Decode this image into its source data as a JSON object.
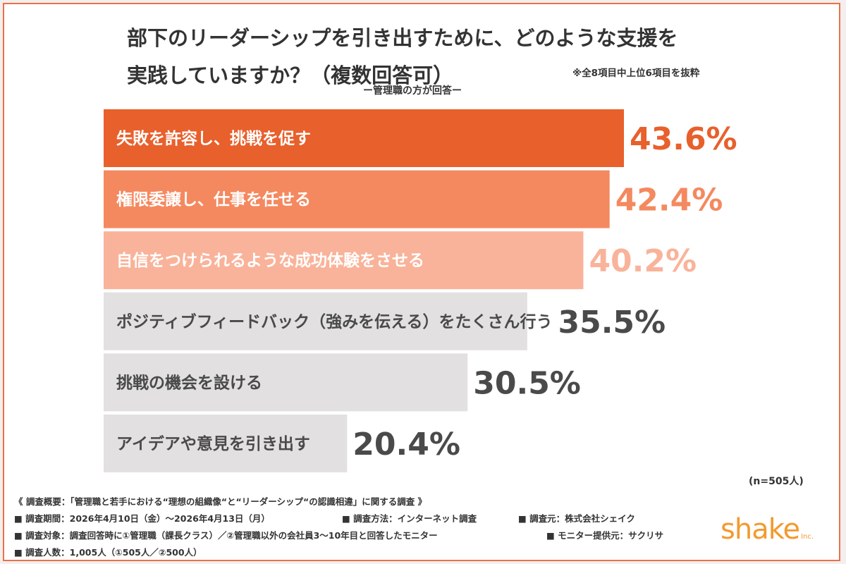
{
  "title_lines": [
    "部下のリーダーシップを引き出すために、どのような支援を",
    "実践していますか？（複数回答可）"
  ],
  "note": "※全8項目中上位6項目を抜粋",
  "subtitle": "ー管理職の方が回答ー",
  "chart_data": {
    "type": "bar",
    "orientation": "horizontal",
    "title": "部下のリーダーシップを引き出すために、どのような支援を実践していますか？（複数回答可）",
    "categories": [
      "失敗を許容し、挑戦を促す",
      "権限委譲し、仕事を任せる",
      "自信をつけられるような成功体験をさせる",
      "ポジティブフィードバック（強みを伝える）をたくさん行う",
      "挑戦の機会を設ける",
      "アイデアや意見を引き出す"
    ],
    "values": [
      43.6,
      42.4,
      40.2,
      35.5,
      30.5,
      20.4
    ],
    "value_labels": [
      "43.6%",
      "42.4%",
      "40.2%",
      "35.5%",
      "30.5%",
      "20.4%"
    ],
    "unit": "%",
    "bar_colors": [
      "#e8602c",
      "#f4895f",
      "#f9b39a",
      "#e2e0e0",
      "#e2e0e0",
      "#e2e0e0"
    ],
    "label_colors": [
      "#ffffff",
      "#ffffff",
      "#ffffff",
      "#4a4a4a",
      "#4a4a4a",
      "#4a4a4a"
    ],
    "value_colors": [
      "#e8602c",
      "#f4895f",
      "#f9b39a",
      "#4a4a4a",
      "#4a4a4a",
      "#4a4a4a"
    ],
    "grid": false,
    "xlim": [
      0,
      50
    ]
  },
  "n_count": "(n=505人)",
  "overview": {
    "heading": "《 調査概要：「管理職と若手における“理想の組織像“と“リーダーシップ“の認識相違」に関する調査 》",
    "period": "■ 調査期間：2026年4月10日（金）〜2026年4月13日（月）",
    "method": "■ 調査方法：インターネット調査",
    "source": "■ 調査元：株式会社シェイク",
    "target": "■ 調査対象：調査回答時に①管理職（課長クラス）／②管理職以外の会社員3〜10年目と回答したモニター",
    "provider": "■ モニター提供元：サクリサ",
    "count": "■ 調査人数：1,005人（①505人／②500人）"
  },
  "logo": {
    "word": "shake",
    "suffix": "Inc."
  }
}
